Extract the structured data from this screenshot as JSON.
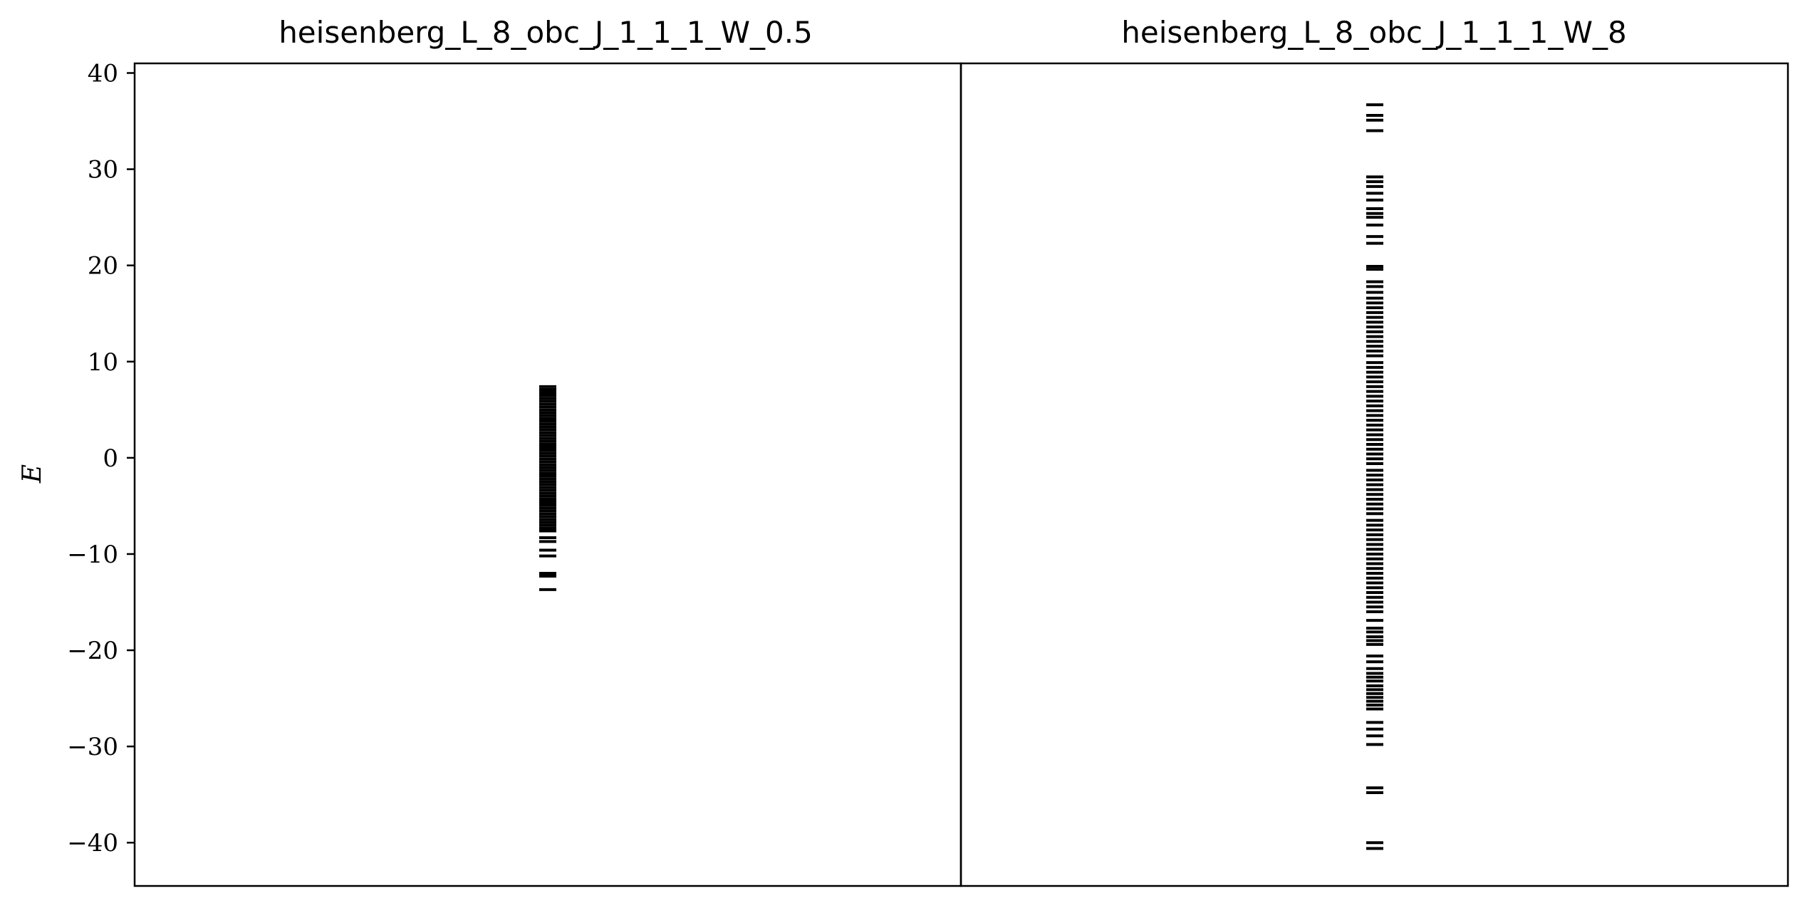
{
  "chart_data": {
    "type": "eventplot",
    "ylabel": "E",
    "ylim": [
      -44.5,
      41
    ],
    "yticks": [
      40,
      30,
      20,
      10,
      0,
      -10,
      -20,
      -30,
      -40
    ],
    "ytick_labels": [
      "40",
      "30",
      "20",
      "10",
      "0",
      "−10",
      "−20",
      "−30",
      "−40"
    ],
    "grid": false,
    "line_color": "#000000",
    "panels": [
      {
        "title": "heisenberg_L_8_obc_J_1_1_1_W_0.5",
        "energies": [
          -13.7,
          -12.3,
          -12.0,
          -10.2,
          -9.6,
          -8.7,
          -8.3,
          -7.6,
          -7.3,
          -7.0,
          -6.7,
          -6.4,
          -6.1,
          -5.8,
          -5.5,
          -5.2,
          -4.9,
          -4.6,
          -4.3,
          -4.0,
          -3.7,
          -3.4,
          -3.1,
          -2.8,
          -2.5,
          -2.2,
          -1.9,
          -1.6,
          -1.3,
          -1.0,
          -0.7,
          -0.4,
          -0.1,
          0.2,
          0.5,
          0.8,
          1.1,
          1.4,
          1.7,
          2.0,
          2.3,
          2.6,
          2.9,
          3.2,
          3.5,
          3.8,
          4.1,
          4.4,
          4.7,
          5.0,
          5.3,
          5.6,
          5.9,
          6.2,
          6.5,
          6.8,
          7.1,
          7.4
        ]
      },
      {
        "title": "heisenberg_L_8_obc_J_1_1_1_W_8",
        "energies": [
          -40.6,
          -40.0,
          -34.8,
          -34.3,
          -29.8,
          -28.9,
          -28.2,
          -27.5,
          -26.1,
          -25.7,
          -25.3,
          -24.9,
          -24.5,
          -24.1,
          -23.7,
          -23.2,
          -22.8,
          -22.4,
          -21.9,
          -21.2,
          -20.6,
          -19.4,
          -19.0,
          -18.6,
          -18.1,
          -17.7,
          -16.9,
          -16.0,
          -15.5,
          -15.0,
          -14.5,
          -14.0,
          -13.5,
          -13.0,
          -12.5,
          -12.0,
          -11.5,
          -11.0,
          -10.5,
          -10.0,
          -9.5,
          -9.0,
          -8.5,
          -8.0,
          -7.5,
          -7.0,
          -6.5,
          -5.8,
          -5.3,
          -4.8,
          -4.3,
          -3.8,
          -3.3,
          -2.8,
          -2.3,
          -1.8,
          -1.3,
          -0.6,
          -0.1,
          0.4,
          0.9,
          1.4,
          1.9,
          2.4,
          2.9,
          3.4,
          3.9,
          4.4,
          4.9,
          5.4,
          5.9,
          6.4,
          6.9,
          7.4,
          7.9,
          8.4,
          8.9,
          9.4,
          9.9,
          10.6,
          11.1,
          11.6,
          12.1,
          12.6,
          13.1,
          13.6,
          14.1,
          14.6,
          15.1,
          15.6,
          16.1,
          16.6,
          17.2,
          17.8,
          18.3,
          19.6,
          19.9,
          22.3,
          23.0,
          24.2,
          25.0,
          25.4,
          25.9,
          26.8,
          27.5,
          28.2,
          28.7,
          29.2,
          35.1,
          35.6,
          36.7,
          34.0
        ]
      }
    ]
  }
}
